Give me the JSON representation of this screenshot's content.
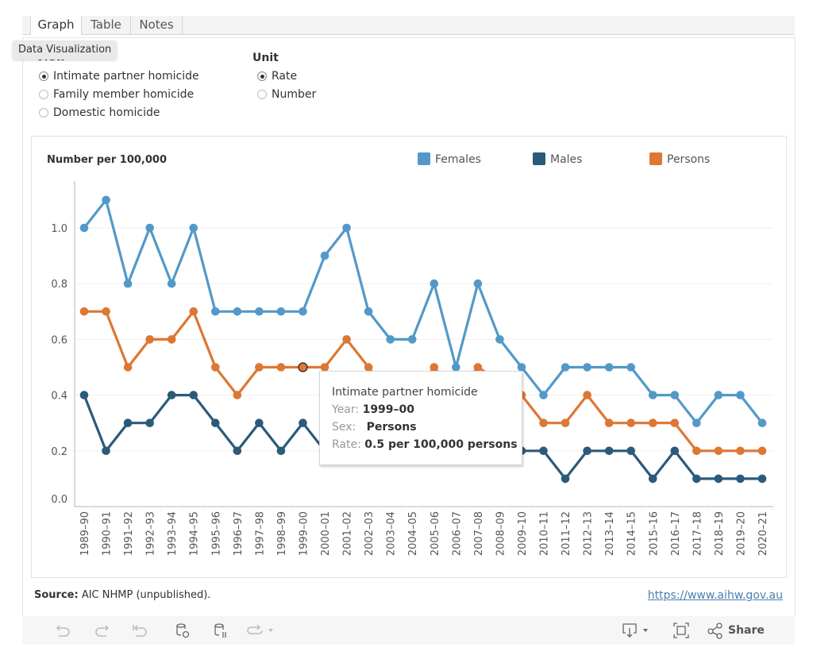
{
  "tabs": [
    {
      "label": "Graph",
      "active": true
    },
    {
      "label": "Table",
      "active": false
    },
    {
      "label": "Notes",
      "active": false
    }
  ],
  "hover_tooltip": "Data Visualization",
  "view": {
    "label": "View",
    "options": [
      {
        "label": "Intimate partner homicide",
        "selected": true
      },
      {
        "label": "Family member homicide",
        "selected": false
      },
      {
        "label": "Domestic homicide",
        "selected": false
      }
    ]
  },
  "unit": {
    "label": "Unit",
    "options": [
      {
        "label": "Rate",
        "selected": true
      },
      {
        "label": "Number",
        "selected": false
      }
    ]
  },
  "chart_data": {
    "type": "line",
    "title": "",
    "ylabel": "Number per 100,000",
    "xlabel": "",
    "ylim": [
      0,
      1.15
    ],
    "yticks": [
      "0.0",
      "0.2",
      "0.4",
      "0.6",
      "0.8",
      "1.0"
    ],
    "ytick_values": [
      0,
      0.2,
      0.4,
      0.6,
      0.8,
      1.0
    ],
    "grid": true,
    "legend_position": "top-right",
    "categories": [
      "1989–90",
      "1990–91",
      "1991–92",
      "1992–93",
      "1993–94",
      "1994–95",
      "1995–96",
      "1996–97",
      "1997–98",
      "1998–99",
      "1999–00",
      "2000–01",
      "2001–02",
      "2002–03",
      "2003–04",
      "2004–05",
      "2005–06",
      "2006–07",
      "2007–08",
      "2008–09",
      "2009–10",
      "2010–11",
      "2011–12",
      "2012–13",
      "2013–14",
      "2014–15",
      "2015–16",
      "2016–17",
      "2017–18",
      "2018–19",
      "2019–20",
      "2020–21"
    ],
    "series": [
      {
        "name": "Females",
        "color": "#5399c8",
        "values": [
          1.0,
          1.1,
          0.8,
          1.0,
          0.8,
          1.0,
          0.7,
          0.7,
          0.7,
          0.7,
          0.7,
          0.9,
          1.0,
          0.7,
          0.6,
          0.6,
          0.8,
          0.5,
          0.8,
          0.6,
          0.5,
          0.4,
          0.5,
          0.5,
          0.5,
          0.5,
          0.4,
          0.4,
          0.3,
          0.4,
          0.4,
          0.3
        ]
      },
      {
        "name": "Males",
        "color": "#2c5a7a",
        "values": [
          0.4,
          0.2,
          0.3,
          0.3,
          0.4,
          0.4,
          0.3,
          0.2,
          0.3,
          0.2,
          0.3,
          0.2,
          0.2,
          0.2,
          0.2,
          0.2,
          0.2,
          0.2,
          0.2,
          0.2,
          0.2,
          0.2,
          0.1,
          0.2,
          0.2,
          0.2,
          0.1,
          0.2,
          0.1,
          0.1,
          0.1,
          0.1
        ]
      },
      {
        "name": "Persons",
        "color": "#dd7734",
        "values": [
          0.7,
          0.7,
          0.5,
          0.6,
          0.6,
          0.7,
          0.5,
          0.4,
          0.5,
          0.5,
          0.5,
          0.5,
          0.6,
          0.5,
          0.4,
          0.4,
          0.5,
          0.4,
          0.5,
          0.45,
          0.4,
          0.3,
          0.3,
          0.4,
          0.3,
          0.3,
          0.3,
          0.3,
          0.2,
          0.2,
          0.2,
          0.2
        ]
      }
    ],
    "highlighted_point": {
      "series": "Persons",
      "category": "1999–00"
    }
  },
  "tooltip": {
    "title": "Intimate partner homicide",
    "year_key": "Year:",
    "year_value": "1999–00",
    "sex_key": "Sex:",
    "sex_value": "Persons",
    "rate_key": "Rate:",
    "rate_value": "0.5 per 100,000 persons"
  },
  "footer": {
    "source_label": "Source:",
    "source_text": "AIC NHMP (unpublished).",
    "link": "https://www.aihw.gov.au"
  },
  "toolbar": {
    "share_label": "Share",
    "icons": [
      "undo-icon",
      "redo-icon",
      "revert-icon",
      "refresh-data-icon",
      "pause-updates-icon",
      "view-icon",
      "download-icon",
      "fullscreen-icon",
      "share-icon"
    ]
  }
}
